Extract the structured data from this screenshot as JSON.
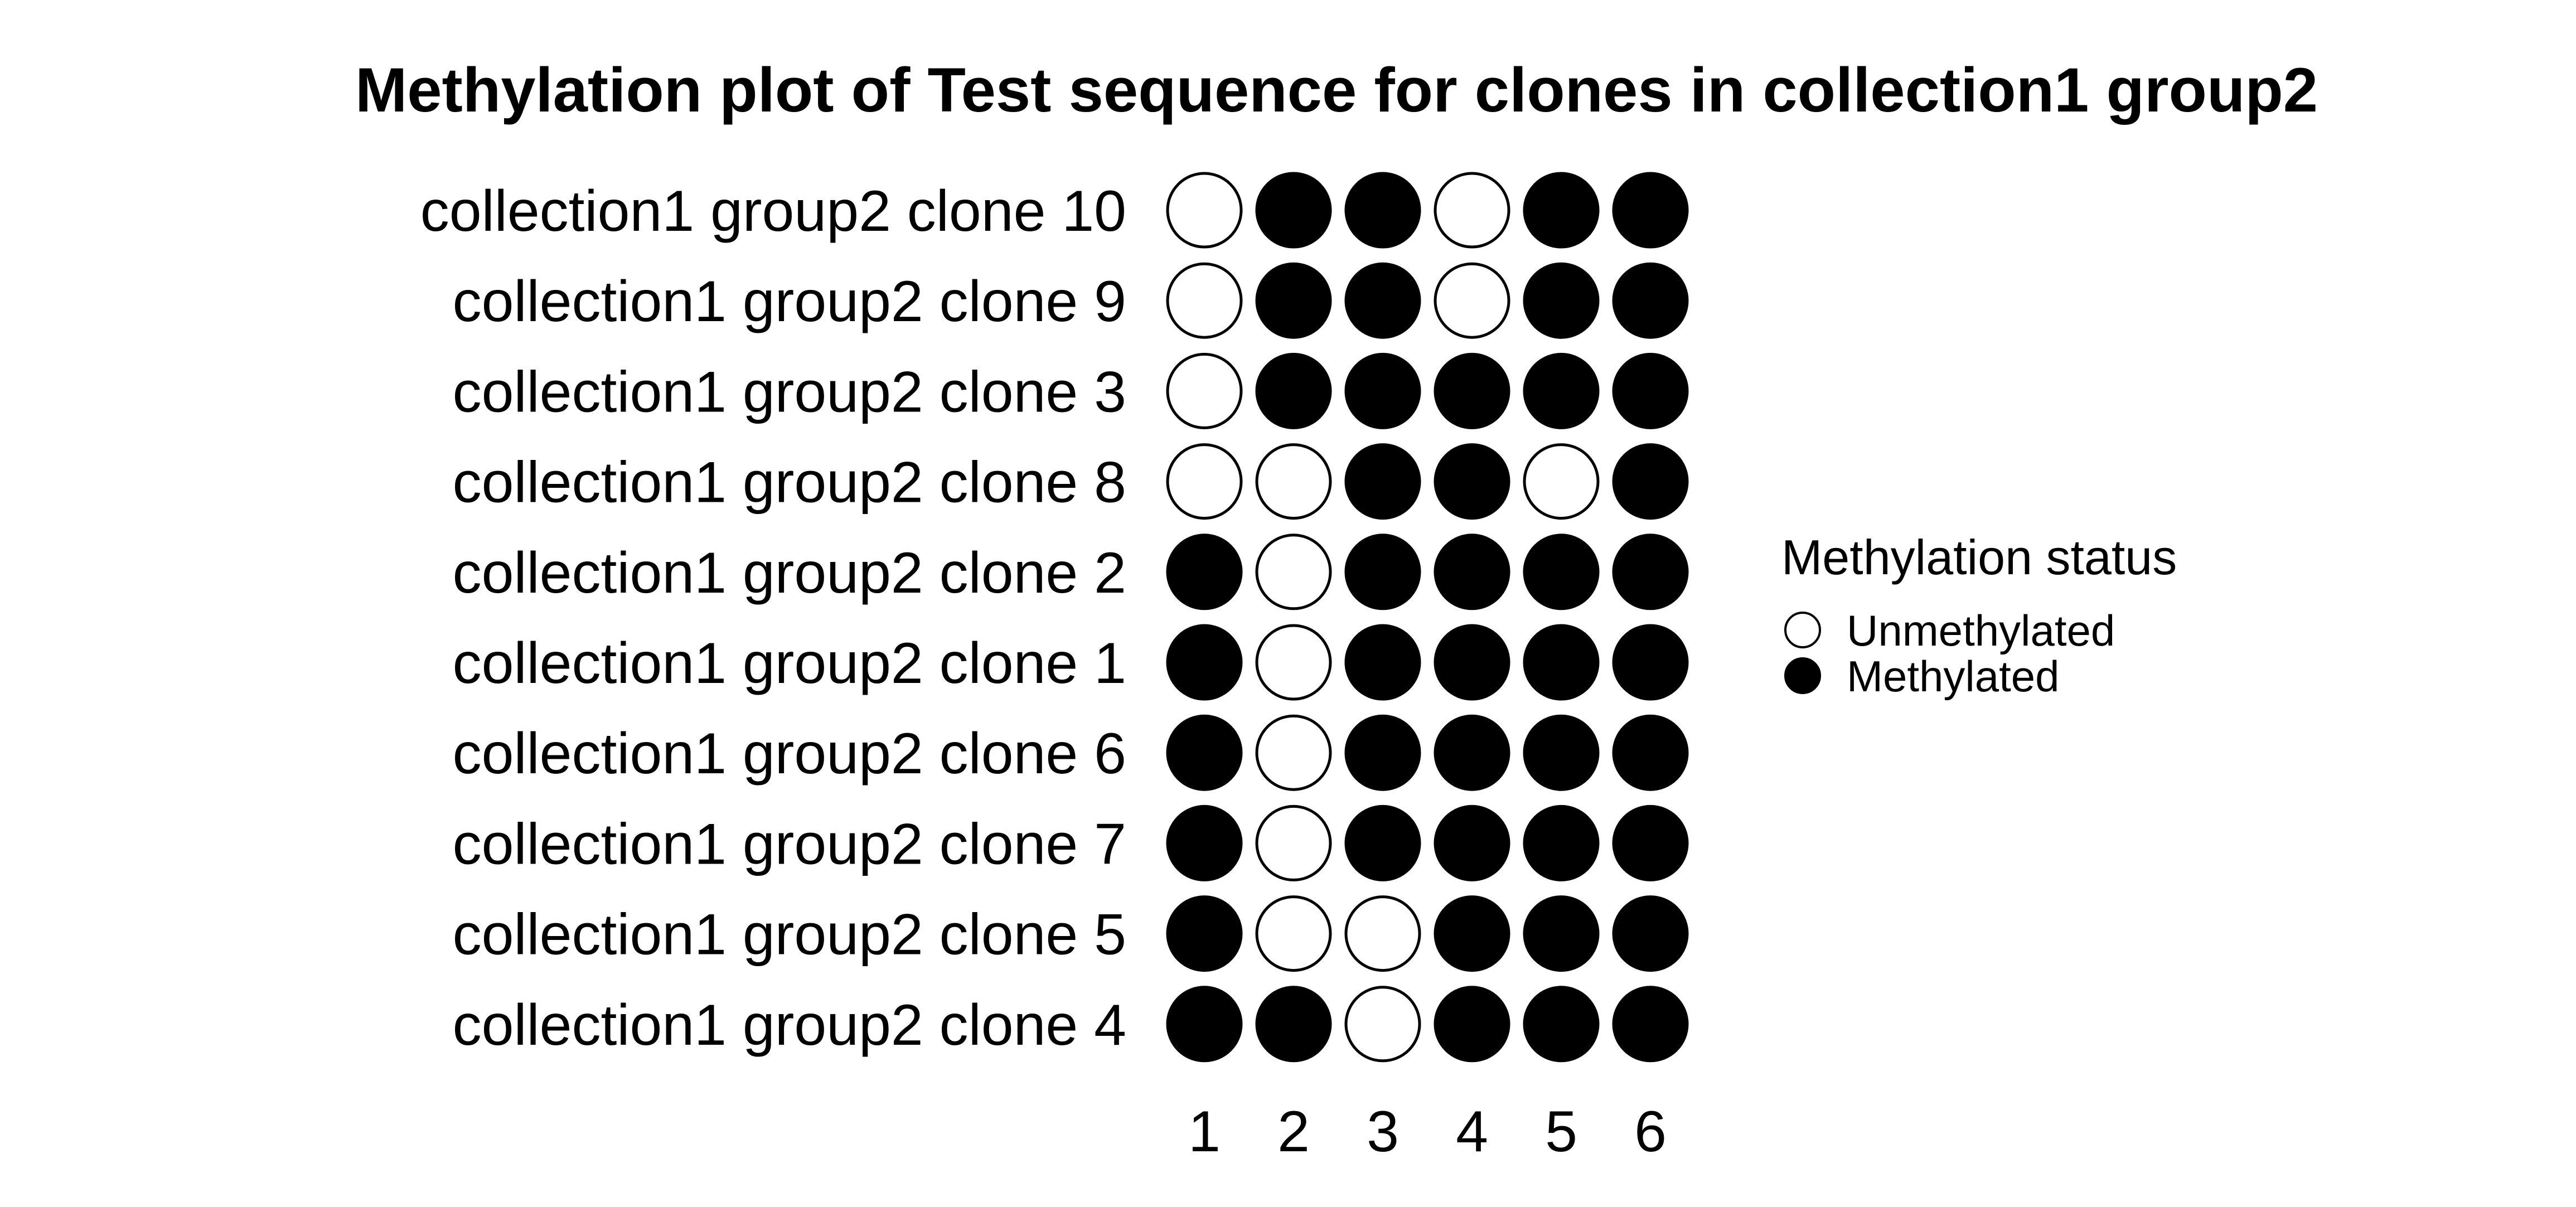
{
  "chart_data": {
    "type": "scatter",
    "title": "Methylation plot of Test sequence for clones in collection1 group2",
    "rows": [
      "collection1 group2 clone 10",
      "collection1 group2 clone 9",
      "collection1 group2 clone 3",
      "collection1 group2 clone 8",
      "collection1 group2 clone 2",
      "collection1 group2 clone 1",
      "collection1 group2 clone 6",
      "collection1 group2 clone 7",
      "collection1 group2 clone 5",
      "collection1 group2 clone 4"
    ],
    "positions": [
      "1",
      "2",
      "3",
      "4",
      "5",
      "6"
    ],
    "values": [
      [
        0,
        1,
        1,
        0,
        1,
        1
      ],
      [
        0,
        1,
        1,
        0,
        1,
        1
      ],
      [
        0,
        1,
        1,
        1,
        1,
        1
      ],
      [
        0,
        0,
        1,
        1,
        0,
        1
      ],
      [
        1,
        0,
        1,
        1,
        1,
        1
      ],
      [
        1,
        0,
        1,
        1,
        1,
        1
      ],
      [
        1,
        0,
        1,
        1,
        1,
        1
      ],
      [
        1,
        0,
        1,
        1,
        1,
        1
      ],
      [
        1,
        0,
        0,
        1,
        1,
        1
      ],
      [
        1,
        1,
        0,
        1,
        1,
        1
      ]
    ],
    "legend": {
      "title": "Methylation status",
      "placement": "right",
      "entries": [
        {
          "label": "Unmethylated",
          "value": 0,
          "fill": "#ffffff"
        },
        {
          "label": "Methylated",
          "value": 1,
          "fill": "#000000"
        }
      ]
    },
    "grid": false,
    "colors": {
      "methylated": "#000000",
      "unmethylated": "#ffffff",
      "stroke": "#000000"
    }
  }
}
